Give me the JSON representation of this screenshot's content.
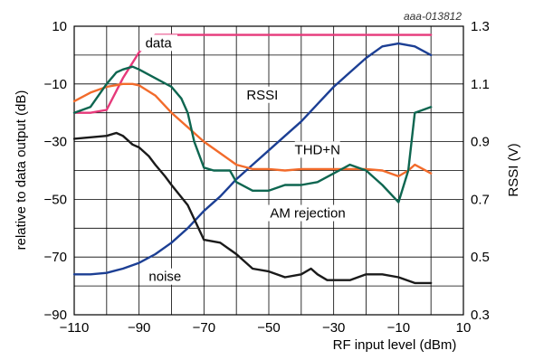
{
  "chart_data": {
    "type": "line",
    "figure_id": "aaa-013812",
    "xlabel": "RF input level (dBm)",
    "ylabel_left": "relative to data output (dB)",
    "ylabel_right": "RSSI (V)",
    "xlim": [
      -110,
      10
    ],
    "ylim_left": [
      -90,
      10
    ],
    "ylim_right": [
      0.3,
      1.3
    ],
    "x_ticks": [
      -110,
      -90,
      -70,
      -50,
      -30,
      -10,
      10
    ],
    "x_tick_labels": [
      "−110",
      "−90",
      "−70",
      "−50",
      "−30",
      "−10",
      "10"
    ],
    "y_left_ticks": [
      10,
      -10,
      -30,
      -50,
      -70,
      -90
    ],
    "y_left_tick_labels": [
      "10",
      "−10",
      "−30",
      "−50",
      "−70",
      "−90"
    ],
    "y_right_ticks": [
      1.3,
      1.1,
      0.9,
      0.7,
      0.5,
      0.3
    ],
    "y_right_tick_labels": [
      "1.3",
      "1.1",
      "0.9",
      "0.7",
      "0.5",
      "0.3"
    ],
    "grid": true,
    "series": [
      {
        "name": "data",
        "axis": "left",
        "color": "#e6397a",
        "x": [
          -110,
          -105,
          -100,
          -95,
          -90,
          -85,
          -80,
          -70,
          -60,
          -50,
          -40,
          -30,
          -20,
          -10,
          0
        ],
        "y": [
          -20,
          -20,
          -19,
          -8,
          1,
          7,
          7,
          7,
          7,
          7,
          7,
          7,
          7,
          7,
          7
        ]
      },
      {
        "name": "RSSI",
        "axis": "right",
        "color": "#1c3f94",
        "x": [
          -110,
          -105,
          -100,
          -95,
          -90,
          -85,
          -80,
          -75,
          -70,
          -65,
          -60,
          -55,
          -50,
          -45,
          -40,
          -35,
          -30,
          -25,
          -20,
          -15,
          -10,
          -5,
          0
        ],
        "y": [
          0.44,
          0.44,
          0.445,
          0.46,
          0.48,
          0.51,
          0.55,
          0.6,
          0.66,
          0.71,
          0.77,
          0.82,
          0.87,
          0.92,
          0.97,
          1.03,
          1.09,
          1.14,
          1.19,
          1.23,
          1.24,
          1.23,
          1.2
        ]
      },
      {
        "name": "THD+N",
        "axis": "left",
        "color": "#f26b2b",
        "x": [
          -110,
          -105,
          -100,
          -95,
          -92,
          -90,
          -85,
          -80,
          -75,
          -70,
          -65,
          -60,
          -55,
          -50,
          -45,
          -40,
          -35,
          -30,
          -25,
          -20,
          -15,
          -10,
          -7,
          -5,
          0
        ],
        "y": [
          -16,
          -13,
          -11,
          -10,
          -10,
          -10.5,
          -14,
          -20,
          -25,
          -30,
          -34,
          -38,
          -39.5,
          -39.5,
          -40,
          -39.5,
          -39.5,
          -39.5,
          -39.5,
          -39.5,
          -40,
          -42,
          -40,
          -38,
          -41
        ]
      },
      {
        "name": "AM rejection",
        "axis": "left",
        "color": "#0e6650",
        "x": [
          -110,
          -105,
          -100,
          -97,
          -95,
          -92,
          -90,
          -85,
          -80,
          -77,
          -75,
          -73,
          -70,
          -67,
          -65,
          -62,
          -60,
          -55,
          -50,
          -45,
          -40,
          -35,
          -30,
          -25,
          -20,
          -15,
          -10,
          -7,
          -5,
          0
        ],
        "y": [
          -20,
          -18,
          -10,
          -6,
          -5,
          -4,
          -5,
          -8,
          -11,
          -15,
          -20,
          -30,
          -39,
          -40,
          -40,
          -40,
          -44,
          -47,
          -47,
          -45,
          -45,
          -44,
          -41,
          -38,
          -40,
          -45,
          -51,
          -40,
          -20,
          -18
        ]
      },
      {
        "name": "noise",
        "axis": "left",
        "color": "#1a1a1a",
        "x": [
          -110,
          -105,
          -100,
          -97,
          -95,
          -92,
          -90,
          -87,
          -85,
          -82,
          -80,
          -75,
          -70,
          -65,
          -60,
          -55,
          -50,
          -45,
          -40,
          -37,
          -35,
          -32,
          -30,
          -25,
          -20,
          -15,
          -10,
          -5,
          0
        ],
        "y": [
          -29,
          -28.5,
          -28,
          -27,
          -28,
          -31,
          -32,
          -35,
          -38,
          -42,
          -45,
          -52,
          -64,
          -65,
          -69,
          -74,
          -75,
          -77,
          -76,
          -74,
          -76,
          -78,
          -78,
          -78,
          -76,
          -76,
          -77,
          -79,
          -79
        ]
      }
    ],
    "annotations": [
      {
        "text": "data",
        "x": -84,
        "y": 3,
        "axis": "left"
      },
      {
        "text": "RSSI",
        "x": -52,
        "y": 1.05,
        "axis": "right"
      },
      {
        "text": "THD+N",
        "x": -35,
        "y": -34,
        "axis": "left"
      },
      {
        "text": "AM rejection",
        "x": -38,
        "y": -56,
        "axis": "left"
      },
      {
        "text": "noise",
        "x": -82,
        "y": -78,
        "axis": "left"
      }
    ]
  }
}
